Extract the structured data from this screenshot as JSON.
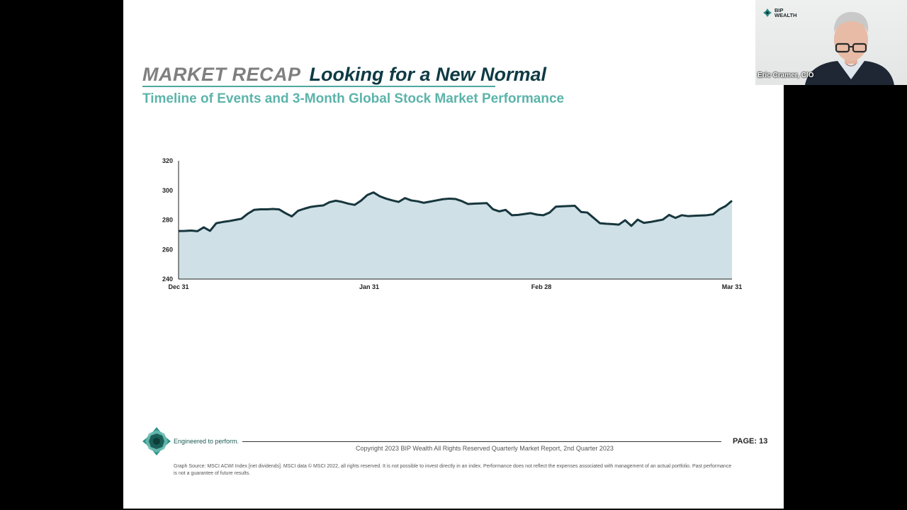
{
  "slide": {
    "title_main": "MARKET RECAP",
    "title_sub": "Looking for a New Normal",
    "subtitle": "Timeline of Events and 3-Month Global Stock Market Performance"
  },
  "chart_data": {
    "type": "area",
    "title": "",
    "xlabel": "",
    "ylabel": "",
    "ylim": [
      240,
      320
    ],
    "yticks": [
      "320",
      "300",
      "280",
      "260",
      "240"
    ],
    "xticks": [
      "Dec 31",
      "Jan 31",
      "Feb 28",
      "Mar 31"
    ],
    "fill_color": "#cfe0e6",
    "line_color": "#17363d",
    "grid": false,
    "series": [
      {
        "values": [
          272.5,
          272.6,
          272.8,
          272.4,
          275.0,
          272.6,
          277.8,
          278.6,
          279.2,
          280.0,
          280.8,
          284.2,
          286.8,
          287.2,
          287.2,
          287.4,
          287.1,
          284.6,
          282.4,
          286.2,
          287.6,
          288.8,
          289.4,
          289.8,
          292.0,
          293.0,
          292.2,
          291.0,
          290.2,
          293.0,
          296.8,
          298.6,
          296.0,
          294.4,
          293.2,
          292.2,
          294.8,
          293.2,
          292.6,
          291.6,
          292.4,
          293.2,
          294.0,
          294.4,
          294.2,
          292.8,
          290.8,
          291.0,
          291.2,
          291.4,
          287.2,
          285.8,
          286.8,
          283.2,
          283.4,
          284.0,
          284.6,
          283.6,
          283.2,
          285.0,
          289.0,
          289.2,
          289.4,
          289.6,
          285.4,
          285.0,
          281.4,
          277.8,
          277.4,
          277.2,
          276.8,
          279.8,
          276.0,
          280.2,
          278.0,
          278.6,
          279.4,
          280.2,
          283.4,
          281.4,
          283.2,
          282.6,
          282.8,
          283.0,
          283.2,
          283.8,
          287.2,
          289.4,
          293.0
        ]
      }
    ]
  },
  "footer": {
    "tagline": "Engineered to perform.",
    "copyright": "Copyright 2023 BIP Wealth    All Rights Reserved    Quarterly Market Report, 2nd Quarter 2023",
    "page": "PAGE: 13",
    "disclaimer": "Graph Source: MSCI ACWI Index [net dividends]. MSCI data © MSCI 2022, all rights reserved.    It is not possible to invest directly in an index. Performance does not reflect the expenses associated with management of an actual portfolio. Past performance is not a guarantee of future results."
  },
  "video": {
    "logo_line1": "BIP",
    "logo_line2": "WEALTH",
    "participant_name": "Eric Cramer, CIO"
  },
  "colors": {
    "brand_teal": "#5cb4aa",
    "title_dark": "#0f3b44",
    "title_gray": "#7f7f7f"
  }
}
